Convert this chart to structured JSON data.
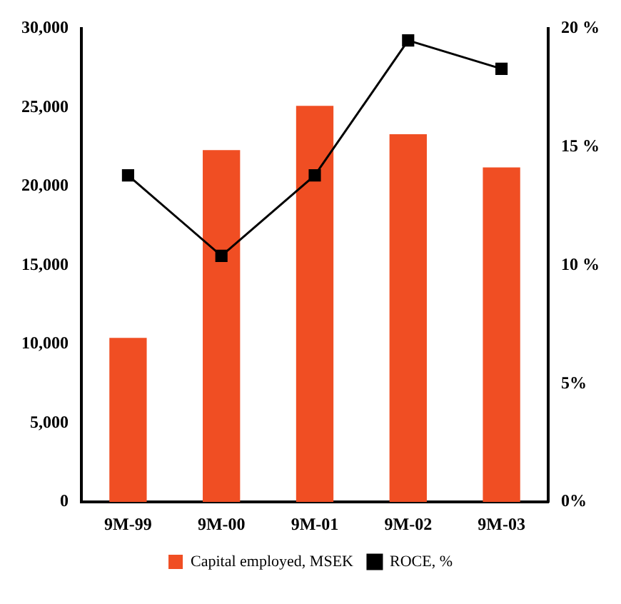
{
  "chart_data": {
    "type": "bar",
    "categories": [
      "9M-99",
      "9M-00",
      "9M-01",
      "9M-02",
      "9M-03"
    ],
    "series": [
      {
        "name": "Capital employed, MSEK",
        "color": "#f04e23",
        "values": [
          10400,
          22300,
          25100,
          23300,
          21200
        ]
      },
      {
        "name": "ROCE, %",
        "type": "line",
        "axis": "y2",
        "color": "#000000",
        "values": [
          13.8,
          10.4,
          13.8,
          19.5,
          18.3
        ]
      }
    ],
    "ylim": [
      0,
      30000
    ],
    "yticks": [
      {
        "value": 0,
        "label": "0"
      },
      {
        "value": 5000,
        "label": "5,000"
      },
      {
        "value": 10000,
        "label": "10,000"
      },
      {
        "value": 15000,
        "label": "15,000"
      },
      {
        "value": 20000,
        "label": "20,000"
      },
      {
        "value": 25000,
        "label": "25,000"
      },
      {
        "value": 30000,
        "label": "30,000"
      }
    ],
    "y2lim": [
      0,
      20
    ],
    "y2ticks": [
      {
        "value": 0,
        "label": "0%"
      },
      {
        "value": 5,
        "label": "5%"
      },
      {
        "value": 10,
        "label": "10 %"
      },
      {
        "value": 15,
        "label": "15 %"
      },
      {
        "value": 20,
        "label": "20 %"
      }
    ],
    "marker": "square",
    "legend": "bottom"
  }
}
